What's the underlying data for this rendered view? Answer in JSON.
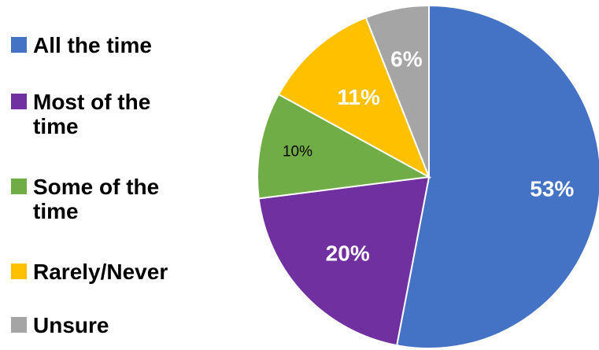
{
  "chart_data": {
    "type": "pie",
    "categories": [
      "All the time",
      "Most of the time",
      "Some of the time",
      "Rarely/Never",
      "Unsure"
    ],
    "values": [
      53,
      20,
      10,
      11,
      6
    ],
    "value_labels": [
      "53%",
      "20%",
      "10%",
      "11%",
      "6%"
    ],
    "colors": [
      "#4472C4",
      "#7030A0",
      "#70AD47",
      "#FFC000",
      "#A5A5A5"
    ],
    "label_colors": [
      "#ffffff",
      "#ffffff",
      "#000000",
      "#ffffff",
      "#ffffff"
    ],
    "label_bold": [
      true,
      true,
      false,
      true,
      true
    ],
    "start_angle_deg": 0,
    "direction": "clockwise",
    "legend": "left"
  }
}
